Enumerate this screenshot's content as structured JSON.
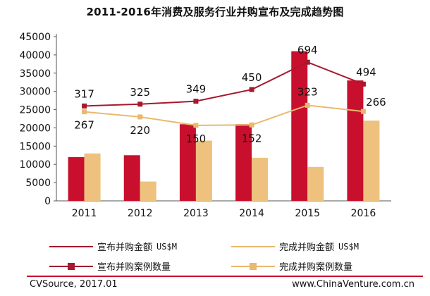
{
  "chart_data": {
    "type": "bar",
    "title": "2011-2016年消费及服务行业并购宣布及完成趋势图",
    "categories": [
      "2011",
      "2012",
      "2013",
      "2014",
      "2015",
      "2016"
    ],
    "ylim": [
      0,
      45000
    ],
    "yticks": [
      0,
      5000,
      10000,
      15000,
      20000,
      25000,
      30000,
      35000,
      40000,
      45000
    ],
    "grid": false,
    "legend_position": "bottom",
    "series": [
      {
        "name": "宣布并购金额 US$M",
        "kind": "bar",
        "color": "#c8102e",
        "values": [
          12000,
          12500,
          21000,
          21000,
          41000,
          33000
        ]
      },
      {
        "name": "完成并购金额 US$M",
        "kind": "bar",
        "color": "#eec27e",
        "values": [
          13000,
          5300,
          16500,
          11800,
          9300,
          22000
        ]
      },
      {
        "name": "宣布并购案例数量",
        "kind": "line",
        "color": "#a6192e",
        "values": [
          26000,
          26500,
          27300,
          30500,
          38000,
          32000
        ],
        "labels": [
          "317",
          "325",
          "349",
          "450",
          "694",
          "494"
        ]
      },
      {
        "name": "完成并购案例数量",
        "kind": "line",
        "color": "#e9b96e",
        "values": [
          24400,
          23000,
          20700,
          20800,
          26200,
          24500
        ],
        "labels": [
          "267",
          "220",
          "150",
          "152",
          "323",
          "266"
        ]
      }
    ]
  },
  "legend": {
    "announced_amount": "宣布并购金额",
    "completed_amount": "完成并购金额",
    "unit": "US$M",
    "announced_count": "宣布并购案例数量",
    "completed_count": "完成并购案例数量"
  },
  "footer": {
    "source": "CVSource, 2017.01",
    "url": "www.ChinaVenture.com.cn"
  }
}
